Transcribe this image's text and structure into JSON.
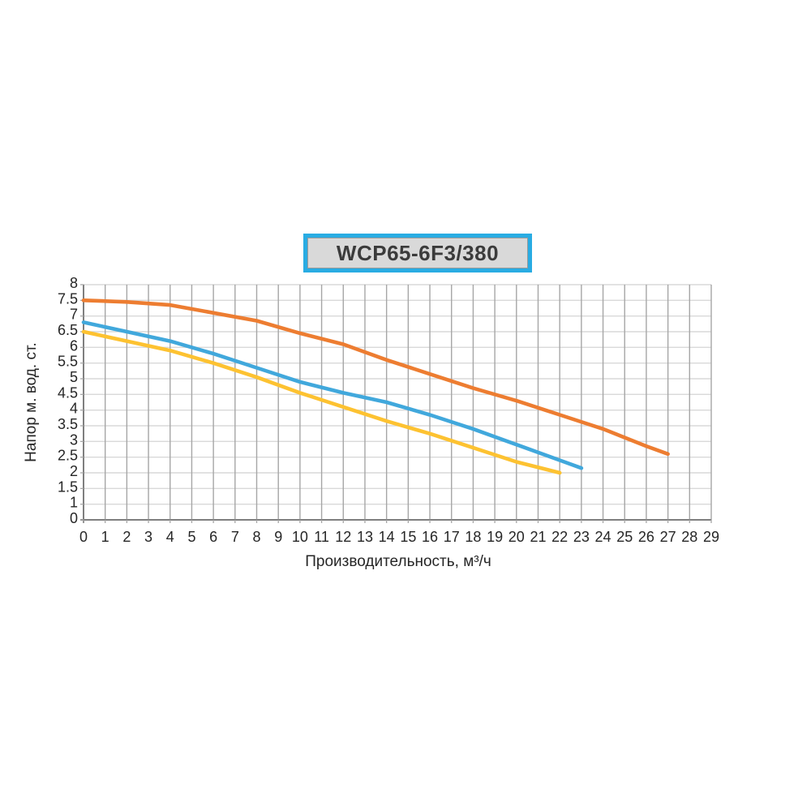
{
  "title_box": {
    "label": "WCP65-6F3/380",
    "fill": "#d9d9d9",
    "border_color": "#29ace3",
    "text_color": "#3b3b3b"
  },
  "chart_data": {
    "type": "line",
    "title": "WCP65-6F3/380",
    "xlabel": "Производительность, м³/ч",
    "ylabel": "Напор м. вод. ст.",
    "xlim": [
      0,
      29
    ],
    "x_tick_labels": [
      "0",
      "1",
      "2",
      "3",
      "4",
      "5",
      "6",
      "7",
      "8",
      "9",
      "10",
      "11",
      "12",
      "13",
      "14",
      "15",
      "16",
      "17",
      "18",
      "19",
      "20",
      "21",
      "22",
      "23",
      "24",
      "25",
      "26",
      "27",
      "28",
      "29"
    ],
    "y_tick_labels": [
      "8",
      "7.5",
      "7",
      "6.5",
      "6",
      "5.5",
      "5",
      "4.5",
      "4",
      "3.5",
      "3",
      "2.5",
      "2",
      "1.5",
      "1",
      "0"
    ],
    "y_axis_note": "gridline rows evenly spaced; bottom row spans 1 to 0, label 0.5 omitted",
    "grid": {
      "vertical_color": "#a6a6a6",
      "horizontal_color": "#d9d9d9",
      "axis_color": "#7f7f7f",
      "background": "#ffffff"
    },
    "legend": "none",
    "series": [
      {
        "name": "curve-high",
        "color": "#ed7d31",
        "points": [
          [
            0,
            7.5
          ],
          [
            2,
            7.45
          ],
          [
            4,
            7.35
          ],
          [
            6,
            7.1
          ],
          [
            8,
            6.85
          ],
          [
            10,
            6.45
          ],
          [
            12,
            6.1
          ],
          [
            14,
            5.6
          ],
          [
            16,
            5.15
          ],
          [
            18,
            4.7
          ],
          [
            20,
            4.3
          ],
          [
            22,
            3.85
          ],
          [
            24,
            3.4
          ],
          [
            26,
            2.85
          ],
          [
            27,
            2.6
          ]
        ]
      },
      {
        "name": "curve-mid",
        "color": "#41a8dc",
        "points": [
          [
            0,
            6.8
          ],
          [
            2,
            6.5
          ],
          [
            4,
            6.2
          ],
          [
            6,
            5.8
          ],
          [
            8,
            5.35
          ],
          [
            10,
            4.9
          ],
          [
            12,
            4.55
          ],
          [
            14,
            4.25
          ],
          [
            16,
            3.85
          ],
          [
            18,
            3.4
          ],
          [
            20,
            2.9
          ],
          [
            22,
            2.4
          ],
          [
            23,
            2.15
          ]
        ]
      },
      {
        "name": "curve-low",
        "color": "#fdc231",
        "points": [
          [
            0,
            6.5
          ],
          [
            2,
            6.2
          ],
          [
            4,
            5.9
          ],
          [
            6,
            5.5
          ],
          [
            8,
            5.05
          ],
          [
            10,
            4.55
          ],
          [
            12,
            4.1
          ],
          [
            14,
            3.65
          ],
          [
            16,
            3.25
          ],
          [
            18,
            2.8
          ],
          [
            20,
            2.35
          ],
          [
            22,
            2.0
          ]
        ]
      }
    ]
  }
}
